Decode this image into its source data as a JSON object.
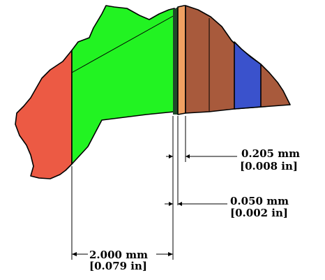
{
  "colors": {
    "background": "#ffffff",
    "red_region": "#ec5a44",
    "green_region": "#22f322",
    "orange_layer": "#f0a062",
    "brown_region": "#a85a3c",
    "blue_band": "#3a52cc",
    "dark_thin_layer": "#1f4a2a",
    "dimension_line": "#000000"
  },
  "dimensions": {
    "dim_1": {
      "mm": "0.205 mm",
      "in": "[0.008 in]"
    },
    "dim_2": {
      "mm": "0.050 mm",
      "in": "[0.002 in]"
    },
    "dim_3": {
      "mm": "2.000 mm",
      "in": "[0.079 in]"
    }
  }
}
